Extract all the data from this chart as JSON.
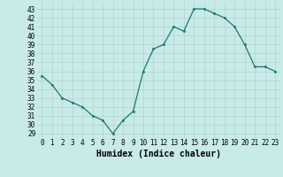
{
  "x": [
    0,
    1,
    2,
    3,
    4,
    5,
    6,
    7,
    8,
    9,
    10,
    11,
    12,
    13,
    14,
    15,
    16,
    17,
    18,
    19,
    20,
    21,
    22,
    23
  ],
  "y": [
    35.5,
    34.5,
    33.0,
    32.5,
    32.0,
    31.0,
    30.5,
    29.0,
    30.5,
    31.5,
    36.0,
    38.5,
    39.0,
    41.0,
    40.5,
    43.0,
    43.0,
    42.5,
    42.0,
    41.0,
    39.0,
    36.5,
    36.5,
    36.0
  ],
  "xlabel": "Humidex (Indice chaleur)",
  "ylim": [
    28.5,
    43.8
  ],
  "xlim": [
    -0.5,
    23.5
  ],
  "yticks": [
    29,
    30,
    31,
    32,
    33,
    34,
    35,
    36,
    37,
    38,
    39,
    40,
    41,
    42,
    43
  ],
  "xticks": [
    0,
    1,
    2,
    3,
    4,
    5,
    6,
    7,
    8,
    9,
    10,
    11,
    12,
    13,
    14,
    15,
    16,
    17,
    18,
    19,
    20,
    21,
    22,
    23
  ],
  "line_color": "#1a7a6e",
  "marker_color": "#1a7a6e",
  "bg_color": "#c8eae8",
  "grid_color": "#b0d4d0",
  "tick_label_fontsize": 5.5,
  "xlabel_fontsize": 7.0,
  "marker_size": 1.8,
  "line_width": 0.9
}
